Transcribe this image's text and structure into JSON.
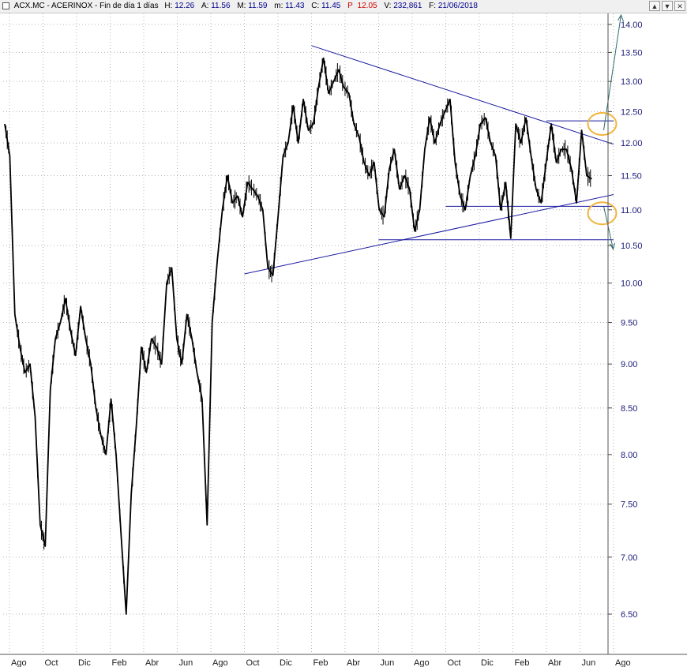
{
  "header": {
    "ticker_label": "ACX.MC - ACERINOX - Fin de día 1 días",
    "h_label": "H:",
    "h_value": "12.26",
    "a_label": "A:",
    "a_value": "11.56",
    "m_label": "M:",
    "m_value": "11.59",
    "mlow_label": "m:",
    "mlow_value": "11.43",
    "c_label": "C:",
    "c_value": "11.45",
    "p_label": "P",
    "p_value": "12.05",
    "v_label": "V:",
    "v_value": "232,861",
    "f_label": "F:",
    "f_value": "21/06/2018",
    "window_buttons": [
      "▲",
      "▼",
      "✕"
    ]
  },
  "colors": {
    "price": "#000000",
    "trendline": "#1a1aa0",
    "projection": "#2e6b6b",
    "highlight_circle": "#f0b43c",
    "grid": "#b4b4b4",
    "axis_text": "#1a1a7a"
  },
  "chart_data": {
    "type": "line",
    "title": "",
    "xlabel": "",
    "ylabel": "",
    "ylim": [
      6.3,
      14.3
    ],
    "y_scale": "log",
    "y_ticks": [
      "14.00",
      "13.50",
      "13.00",
      "12.50",
      "12.00",
      "11.50",
      "11.00",
      "10.50",
      "10.00",
      "9.50",
      "9.00",
      "8.50",
      "8.00",
      "7.50",
      "7.00",
      "6.50"
    ],
    "x_ticks": [
      "Ago",
      "Oct",
      "Dic",
      "Feb",
      "Abr",
      "Jun",
      "Ago",
      "Oct",
      "Dic",
      "Feb",
      "Abr",
      "Jun",
      "Ago",
      "Oct",
      "Dic",
      "Feb",
      "Abr",
      "Jun",
      "Ago"
    ],
    "series": [
      {
        "values": [
          12.3,
          11.8,
          9.6,
          9.2,
          8.9,
          9.0,
          8.4,
          7.3,
          7.1,
          8.7,
          9.3,
          9.5,
          9.8,
          9.4,
          9.1,
          9.7,
          9.3,
          9.0,
          8.5,
          8.2,
          8.0,
          8.6,
          8.0,
          7.2,
          6.5,
          7.6,
          8.3,
          9.2,
          8.9,
          9.3,
          9.2,
          9.0,
          10.0,
          10.2,
          9.3,
          9.0,
          9.6,
          9.3,
          8.9,
          8.6,
          7.3,
          9.5,
          10.3,
          11.0,
          11.5,
          11.1,
          11.2,
          10.9,
          11.4,
          11.3,
          11.2,
          11.0,
          10.2,
          10.1,
          10.9,
          11.8,
          12.0,
          12.6,
          12.0,
          12.7,
          12.2,
          12.3,
          12.9,
          13.4,
          12.8,
          13.0,
          13.2,
          12.9,
          12.8,
          12.3,
          12.1,
          11.7,
          11.5,
          11.7,
          11.0,
          10.9,
          11.6,
          11.9,
          11.3,
          11.5,
          11.3,
          10.7,
          11.0,
          11.9,
          12.4,
          12.0,
          12.3,
          12.5,
          12.7,
          11.7,
          11.2,
          11.0,
          11.5,
          11.8,
          12.3,
          12.4,
          12.0,
          11.8,
          11.0,
          11.4,
          10.6,
          12.3,
          12.0,
          12.4,
          11.8,
          11.3,
          11.1,
          11.7,
          12.3,
          11.7,
          11.9,
          11.9,
          11.6,
          11.1,
          12.2,
          11.5,
          11.45
        ]
      }
    ],
    "annotations": [
      {
        "kind": "descending-trendline",
        "from": {
          "x": "2017-02",
          "y": 13.62
        },
        "to": {
          "x": "2018-08",
          "y": 11.98
        }
      },
      {
        "kind": "ascending-trendline",
        "from": {
          "x": "2016-10",
          "y": 10.12
        },
        "to": {
          "x": "2018-08",
          "y": 11.22
        }
      },
      {
        "kind": "horizontal-line",
        "y": 12.35,
        "from_x": "2018-04",
        "to_x": "2018-08"
      },
      {
        "kind": "horizontal-line",
        "y": 11.05,
        "from_x": "2017-10",
        "to_x": "2018-08"
      },
      {
        "kind": "horizontal-line",
        "y": 10.58,
        "from_x": "2017-06",
        "to_x": "2018-08"
      },
      {
        "kind": "projection-arrow",
        "from": {
          "x": "2018-06",
          "y": 12.2
        },
        "to_y": 14.5
      },
      {
        "kind": "projection-arrow",
        "from": {
          "x": "2018-06",
          "y": 11.05
        },
        "to_y": 10.45
      },
      {
        "kind": "highlight-circle",
        "at": {
          "x": "2018-06",
          "y": 12.3
        }
      },
      {
        "kind": "highlight-circle",
        "at": {
          "x": "2018-06",
          "y": 10.95
        }
      }
    ]
  }
}
